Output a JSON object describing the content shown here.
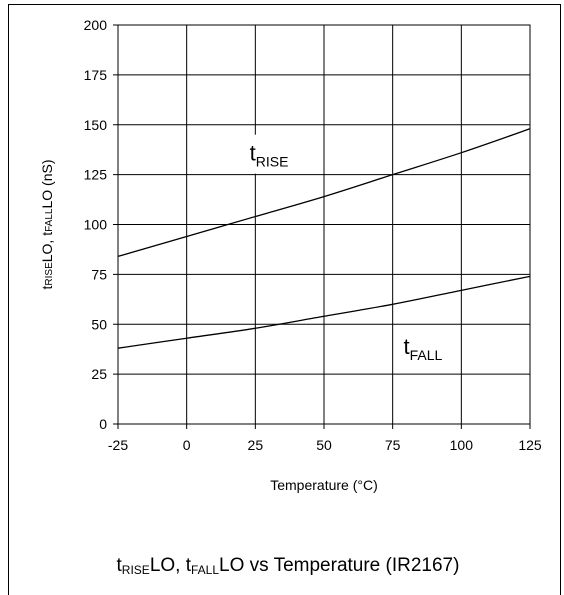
{
  "chart_data": {
    "type": "line",
    "title": {
      "t1": "t",
      "t1_sub": "RISE",
      "t2": "LO, t",
      "t2_sub": "FALL",
      "t3": "LO vs Temperature (IR2167)"
    },
    "xlabel": "Temperature (°C)",
    "ylabel": {
      "p1": "t",
      "p1_sub": "RISE",
      "p2": "LO, t",
      "p2_sub": "FALL",
      "p3": "LO (nS)"
    },
    "xlim": [
      -25,
      125
    ],
    "ylim": [
      0,
      200
    ],
    "x_ticks": [
      -25,
      0,
      25,
      50,
      75,
      100,
      125
    ],
    "y_ticks": [
      0,
      25,
      50,
      75,
      100,
      125,
      150,
      175,
      200
    ],
    "x_tick_labels": [
      "-25",
      "0",
      "25",
      "50",
      "75",
      "100",
      "125"
    ],
    "y_tick_labels": [
      "0",
      "25",
      "50",
      "75",
      "100",
      "125",
      "150",
      "175",
      "200"
    ],
    "grid": true,
    "series": [
      {
        "name": "tRISE",
        "label_main": "t",
        "label_sub": "RISE",
        "label_at": [
          30,
          132
        ],
        "x": [
          -25,
          0,
          25,
          50,
          75,
          100,
          125
        ],
        "y": [
          84,
          94,
          104,
          114,
          125,
          136,
          148
        ]
      },
      {
        "name": "tFALL",
        "label_main": "t",
        "label_sub": "FALL",
        "label_at": [
          86,
          35
        ],
        "x": [
          -25,
          0,
          25,
          50,
          75,
          100,
          125
        ],
        "y": [
          38,
          43,
          48,
          54,
          60,
          67,
          74
        ]
      }
    ]
  }
}
